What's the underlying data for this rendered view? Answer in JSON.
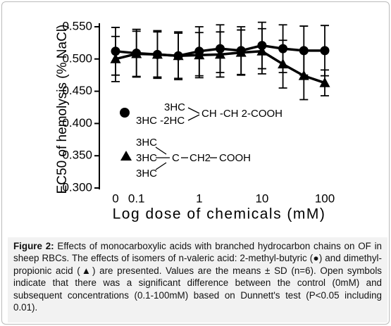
{
  "chart_data": {
    "type": "line",
    "ylabel": "EC50 of hemolysis (% NaCl)",
    "xlabel": "Log dose of chemicals (mM)",
    "categories": [
      "0",
      "0.1",
      null,
      null,
      "1",
      null,
      null,
      "10",
      null,
      null,
      "100"
    ],
    "series": [
      {
        "marker": "circle",
        "color": "#000000",
        "values": [
          0.512,
          0.509,
          0.507,
          0.505,
          0.512,
          0.516,
          0.513,
          0.521,
          0.516,
          0.513,
          0.513
        ],
        "errors": [
          0.037,
          0.037,
          0.037,
          0.037,
          0.038,
          0.037,
          0.037,
          0.036,
          0.037,
          0.038,
          0.039
        ]
      },
      {
        "marker": "triangle",
        "color": "#000000",
        "values": [
          0.5,
          0.508,
          0.507,
          0.505,
          0.506,
          0.507,
          0.51,
          0.512,
          0.492,
          0.474,
          0.463
        ],
        "errors": [
          0.035,
          0.035,
          0.035,
          0.035,
          0.035,
          0.035,
          0.035,
          0.035,
          0.037,
          0.037,
          0.02
        ]
      }
    ],
    "ylim": [
      0.3,
      0.55
    ],
    "yticks": [
      {
        "value": 0.3,
        "label": "0.300"
      },
      {
        "value": 0.35,
        "label": "0.350"
      },
      {
        "value": 0.4,
        "label": "0.400"
      },
      {
        "value": 0.45,
        "label": "0.450"
      },
      {
        "value": 0.5,
        "label": "0.500"
      },
      {
        "value": 0.55,
        "label": "0.550"
      }
    ],
    "annotations": [
      "3HC",
      "3HC -2HC",
      "CH -CH 2-COOH",
      "3HC",
      "3HC",
      "C",
      "CH2",
      "COOH",
      "3HC"
    ],
    "caption": {
      "label": "Figure 2:",
      "text": "Effects of monocarboxylic acids with branched hydrocarbon chains on OF in sheep RBCs. The effects of isomers of n-valeric acid: 2-methyl-butyric (●) and dimethyl-propionic acid (▲) are presented. Values are the means ± SD (n=6). Open symbols indicate that there was a significant difference between the control (0mM) and subsequent concentrations (0.1-100mM) based on Dunnett's test (P<0.05 including 0.01)."
    }
  }
}
